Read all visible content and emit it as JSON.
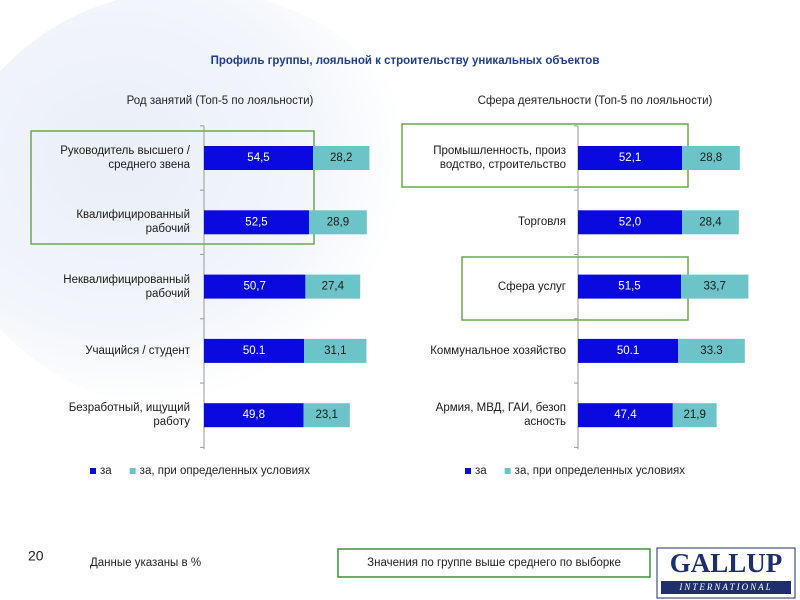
{
  "title": "Профиль группы, лояльной к строительству уникальных объектов",
  "page_number": "20",
  "footnote": "Данные указаны в %",
  "highlight_note": "Значения по группе выше среднего по выборке",
  "logo": {
    "name": "GALLUP",
    "subtitle": "INTERNATIONAL"
  },
  "chart_data": [
    {
      "type": "stacked-bar-horizontal",
      "subtitle": "Род занятий (Топ-5 по лояльности)",
      "categories": [
        "Руководитель высшего / среднего звена",
        "Квалифицированный рабочий",
        "Неквалифицированный рабочий",
        "Учащийся / студент",
        "Безработный, ищущий работу"
      ],
      "series": [
        {
          "name": "за",
          "color": "#0a0ae0",
          "values": [
            54.5,
            52.5,
            50.7,
            50.1,
            49.8
          ],
          "value_labels": [
            "54,5",
            "52,5",
            "50,7",
            "50.1",
            "49,8"
          ]
        },
        {
          "name": "за, при определенных условиях",
          "color": "#6cc4c8",
          "values": [
            28.2,
            28.9,
            27.4,
            31.1,
            23.1
          ],
          "value_labels": [
            "28,2",
            "28,9",
            "27,4",
            "31,1",
            "23,1"
          ]
        }
      ]
    },
    {
      "type": "stacked-bar-horizontal",
      "subtitle": "Сфера деятельности (Топ-5 по лояльности)",
      "categories": [
        "Промышленность, произ водство, строительство",
        "Торговля",
        "Сфера услуг",
        "Коммунальное хозяйство",
        "Армия, МВД, ГАИ, безоп асность"
      ],
      "series": [
        {
          "name": "за",
          "color": "#0a0ae0",
          "values": [
            52.1,
            52.0,
            51.5,
            50.1,
            47.4
          ],
          "value_labels": [
            "52,1",
            "52,0",
            "51,5",
            "50.1",
            "47,4"
          ]
        },
        {
          "name": "за, при определенных условиях",
          "color": "#6cc4c8",
          "values": [
            28.8,
            28.4,
            33.7,
            33.3,
            21.9
          ],
          "value_labels": [
            "28,8",
            "28,4",
            "33,7",
            "33.3",
            "21,9"
          ]
        }
      ]
    }
  ]
}
